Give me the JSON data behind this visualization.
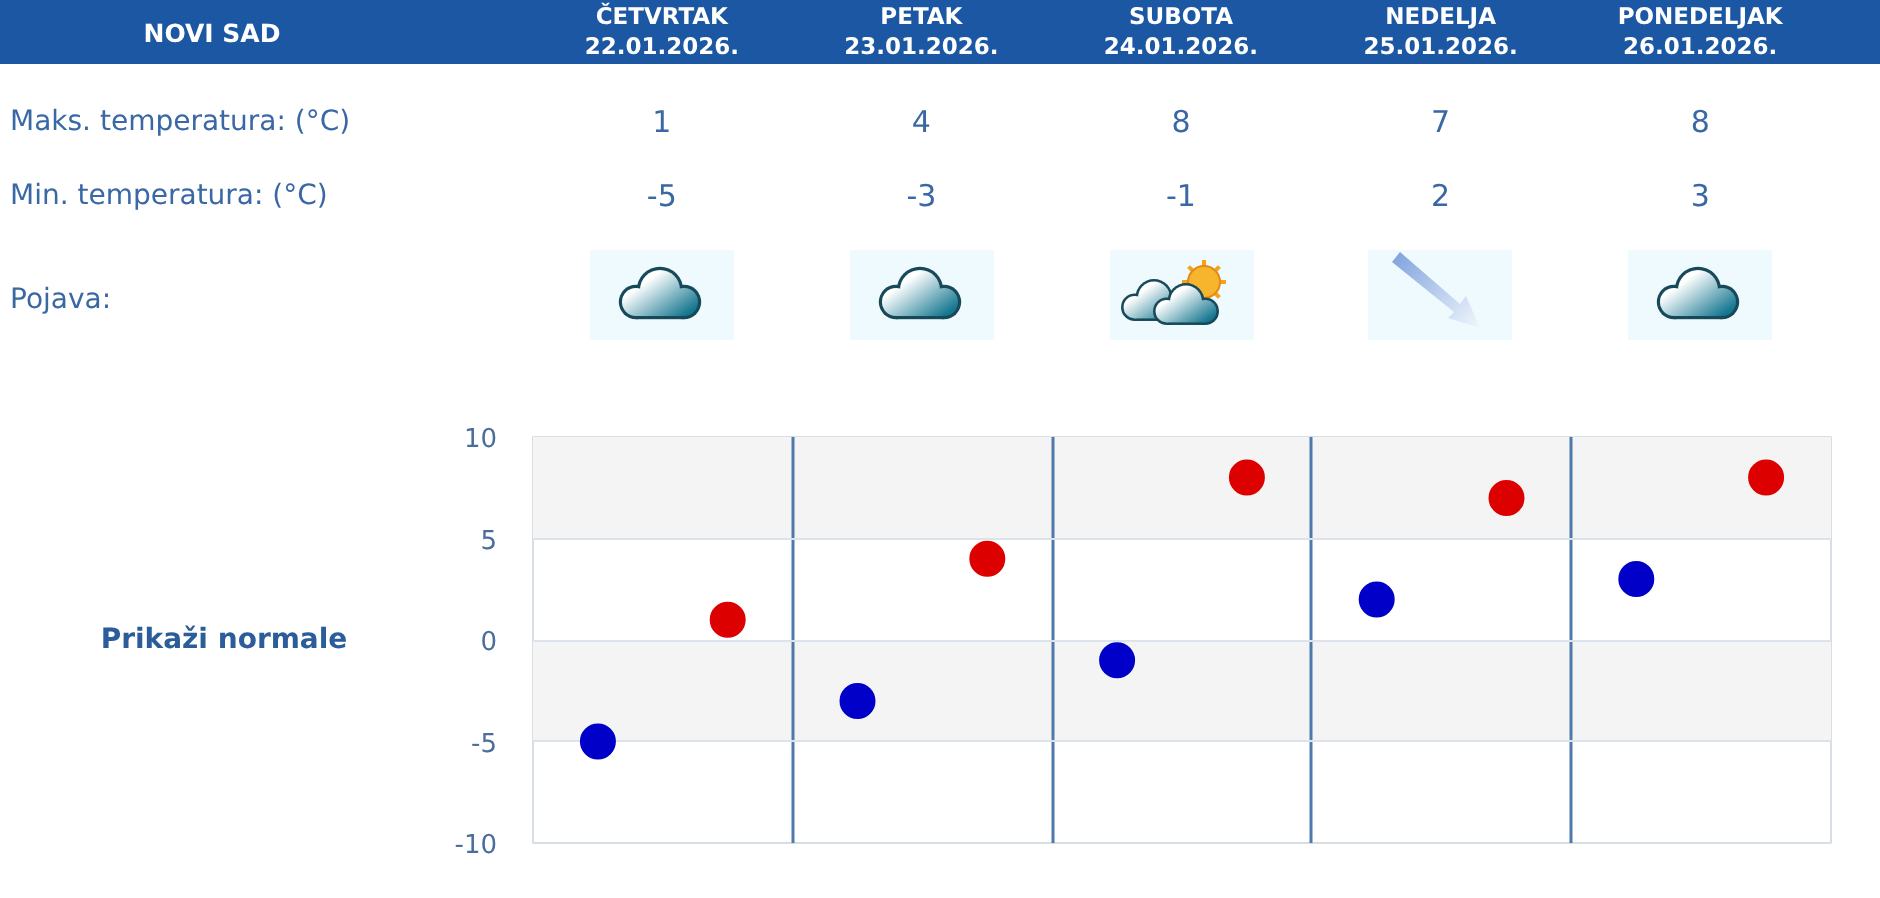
{
  "chart_data": {
    "type": "scatter",
    "title": "NOVI SAD",
    "categories": [
      null,
      null,
      null,
      null,
      null
    ],
    "series": [
      {
        "color": "#dd0000",
        "values": [
          1,
          4,
          8,
          7,
          8
        ]
      },
      {
        "color": "#0000c8",
        "values": [
          -5,
          -3,
          -1,
          2,
          3
        ]
      }
    ],
    "data_labels": true,
    "marker": "circle",
    "ylim": [
      -10,
      10
    ],
    "yticks": [
      -10,
      -5,
      0,
      5,
      10
    ],
    "grid": true,
    "bands": [
      {
        "axis": "y",
        "from": 5,
        "to": 10,
        "color": "#f4f4f4"
      },
      {
        "axis": "y",
        "from": -5,
        "to": 0,
        "color": "#f4f4f4"
      }
    ],
    "annotations": [
      "ČETVRTAK\n22.01.2026.",
      "PETAK\n23.01.2026.",
      "SUBOTA\n24.01.2026.",
      "NEDELJA\n25.01.2026.",
      "PONEDELJAK\n26.01.2026.",
      "Maks. temperatura: (°C)",
      "Min. temperatura: (°C)",
      "Pojava:",
      "Prikaži normale"
    ]
  }
}
